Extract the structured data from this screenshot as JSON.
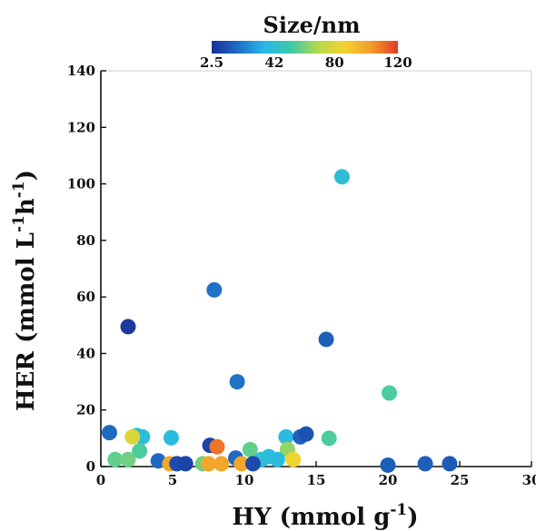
{
  "chart_data": {
    "type": "scatter",
    "title": "",
    "xlabel": "HY (mmol g-1)",
    "ylabel": "HER (mmol L-1h-1)",
    "xlabel_parts": [
      "HY (mmol g",
      "-1",
      ")"
    ],
    "ylabel_parts": [
      "HER (mmol L",
      "-1",
      "h",
      "-1",
      ")"
    ],
    "xlim": [
      0,
      30
    ],
    "ylim": [
      0,
      140
    ],
    "x_ticks": [
      0,
      5,
      10,
      15,
      20,
      25,
      30
    ],
    "y_ticks": [
      0,
      20,
      40,
      60,
      80,
      100,
      120,
      140
    ],
    "grid": false,
    "colorbar": {
      "title": "Size/nm",
      "tick_labels": [
        "2.5",
        "42",
        "80",
        "120"
      ],
      "tick_values": [
        2.5,
        42,
        80,
        120
      ],
      "range": [
        2.5,
        120
      ],
      "colors": [
        "#1a2f9a",
        "#1e6fc4",
        "#2ab9e6",
        "#3ccaa8",
        "#b6d94a",
        "#f4d22e",
        "#f49b2a",
        "#e33b2a"
      ]
    },
    "points": [
      {
        "x": 16.8,
        "y": 102.5,
        "size": 40
      },
      {
        "x": 7.9,
        "y": 62.5,
        "size": 20
      },
      {
        "x": 1.9,
        "y": 49.5,
        "size": 5
      },
      {
        "x": 15.7,
        "y": 45,
        "size": 15
      },
      {
        "x": 9.5,
        "y": 30,
        "size": 20
      },
      {
        "x": 20.1,
        "y": 26,
        "size": 55
      },
      {
        "x": 0.6,
        "y": 12,
        "size": 18
      },
      {
        "x": 2.5,
        "y": 11,
        "size": 38
      },
      {
        "x": 2.9,
        "y": 10.5,
        "size": 40
      },
      {
        "x": 4.9,
        "y": 10.2,
        "size": 38
      },
      {
        "x": 12.9,
        "y": 10.5,
        "size": 38
      },
      {
        "x": 13.9,
        "y": 10.5,
        "size": 16
      },
      {
        "x": 14.3,
        "y": 11.5,
        "size": 12
      },
      {
        "x": 15.9,
        "y": 10,
        "size": 55
      },
      {
        "x": 7.6,
        "y": 7.5,
        "size": 8
      },
      {
        "x": 8.1,
        "y": 7,
        "size": 110
      },
      {
        "x": 2.2,
        "y": 10.5,
        "size": 80
      },
      {
        "x": 2.7,
        "y": 5.5,
        "size": 55
      },
      {
        "x": 9.4,
        "y": 3,
        "size": 18
      },
      {
        "x": 10.4,
        "y": 6,
        "size": 58
      },
      {
        "x": 11.7,
        "y": 3.5,
        "size": 38
      },
      {
        "x": 13.0,
        "y": 6,
        "size": 65
      },
      {
        "x": 1.0,
        "y": 2.5,
        "size": 58
      },
      {
        "x": 1.9,
        "y": 2.5,
        "size": 60
      },
      {
        "x": 4.0,
        "y": 2,
        "size": 18
      },
      {
        "x": 11.2,
        "y": 2.5,
        "size": 40
      },
      {
        "x": 12.3,
        "y": 2.5,
        "size": 38
      },
      {
        "x": 13.4,
        "y": 2.5,
        "size": 85
      },
      {
        "x": 4.8,
        "y": 1,
        "size": 100
      },
      {
        "x": 5.3,
        "y": 1,
        "size": 10
      },
      {
        "x": 5.9,
        "y": 1,
        "size": 8
      },
      {
        "x": 7.1,
        "y": 1,
        "size": 60
      },
      {
        "x": 7.5,
        "y": 1,
        "size": 100
      },
      {
        "x": 8.4,
        "y": 1,
        "size": 100
      },
      {
        "x": 9.8,
        "y": 1,
        "size": 100
      },
      {
        "x": 10.6,
        "y": 1,
        "size": 10
      },
      {
        "x": 20.0,
        "y": 0.5,
        "size": 15
      },
      {
        "x": 22.6,
        "y": 1,
        "size": 15
      },
      {
        "x": 24.3,
        "y": 1,
        "size": 14
      }
    ]
  }
}
